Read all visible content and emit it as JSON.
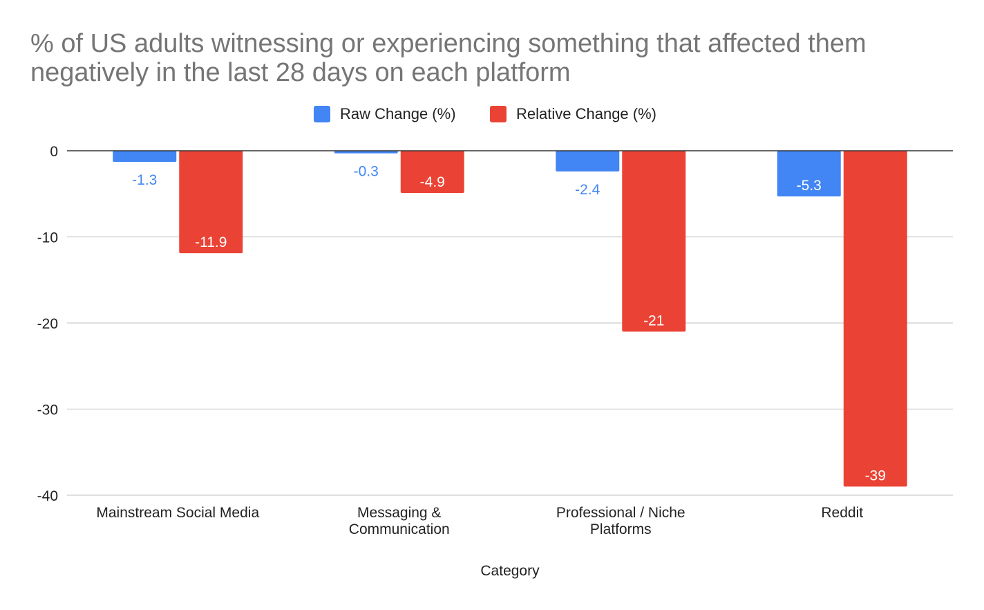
{
  "chart_data": {
    "type": "bar",
    "title": "% of US adults witnessing or experiencing something that affected them negatively in the last 28 days on each platform",
    "xlabel": "Category",
    "ylabel": "",
    "categories": [
      [
        "Mainstream Social Media"
      ],
      [
        "Messaging &",
        "Communication"
      ],
      [
        "Professional / Niche",
        "Platforms"
      ],
      [
        "Reddit"
      ]
    ],
    "series": [
      {
        "name": "Raw Change (%)",
        "color": "#4285F4",
        "values": [
          -1.3,
          -0.3,
          -2.4,
          -5.3
        ],
        "labels": [
          "-1.3",
          "-0.3",
          "-2.4",
          "-5.3"
        ]
      },
      {
        "name": "Relative Change (%)",
        "color": "#EA4335",
        "values": [
          -11.9,
          -4.9,
          -21,
          -39
        ],
        "labels": [
          "-11.9",
          "-4.9",
          "-21",
          "-39"
        ]
      }
    ],
    "ylim": [
      -40,
      0
    ],
    "yticks": [
      0,
      -10,
      -20,
      -30,
      -40
    ],
    "grid": true,
    "legend_position": "top-center"
  }
}
